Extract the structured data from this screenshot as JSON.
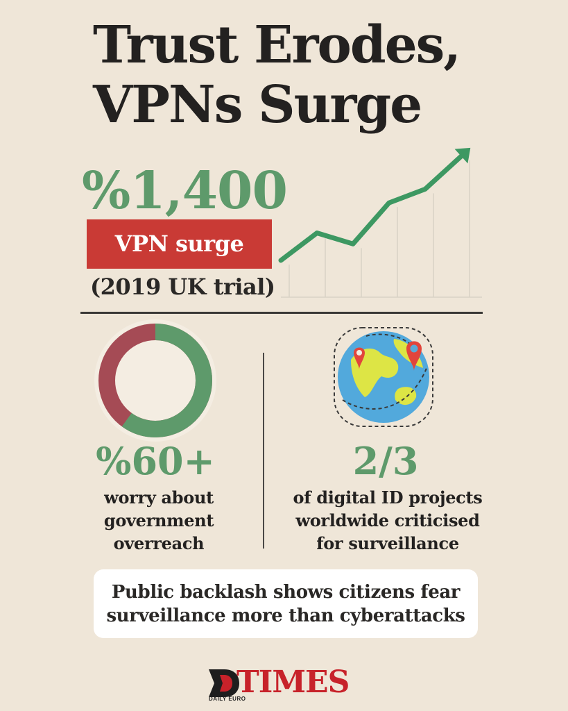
{
  "title": {
    "line1": "Trust Erodes,",
    "line2": "VPNs Surge"
  },
  "vpn_stat": {
    "value": "%1,400",
    "label": "VPN surge",
    "note": "(2019 UK trial)"
  },
  "worry_stat": {
    "value": "%60+",
    "caption_lines": [
      "worry about",
      "government",
      "overreach"
    ],
    "donut": {
      "green_fraction": 0.6,
      "red_fraction": 0.4
    }
  },
  "digital_id_stat": {
    "value": "2/3",
    "caption_lines": [
      "of digital ID projects",
      "worldwide criticised",
      "for surveillance"
    ]
  },
  "callout": {
    "lines": [
      "Public backlash shows citizens fear",
      "surveillance more than cyberattacks"
    ]
  },
  "logo": {
    "brand": "TIMES",
    "subtitle": "DAILY EURO"
  },
  "colors": {
    "green": "#5e9a6b",
    "red": "#c93a35",
    "dark_red": "#a54b55",
    "background": "#efe6d8"
  },
  "icons": [
    "trend-up-arrow-icon",
    "globe-icon",
    "map-pin-icon",
    "donut-chart-icon"
  ],
  "trend": {
    "values": [
      0,
      2.0,
      1.2,
      4.2,
      5.2,
      7.6
    ]
  }
}
